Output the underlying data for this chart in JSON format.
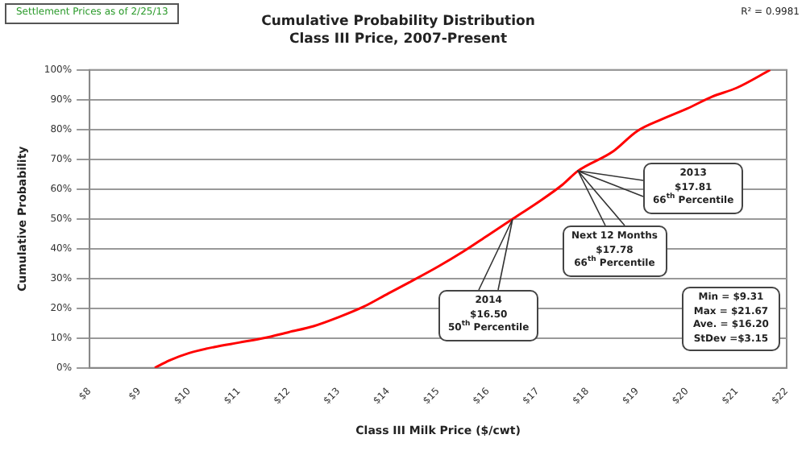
{
  "chart_data": {
    "type": "line",
    "title": "Cumulative Probability Distribution",
    "subtitle": "Class III Price, 2007-Present",
    "xlabel": "Class III Milk Price ($/cwt)",
    "ylabel": "Cumulative Probability",
    "series": [
      {
        "color": "#ff0000",
        "x": [
          9.31,
          9.6,
          10,
          10.5,
          11,
          11.5,
          12,
          12.5,
          13,
          13.5,
          14,
          14.42,
          15,
          15.5,
          16,
          16.5,
          17,
          17.5,
          17.8,
          18.5,
          19,
          19.5,
          20,
          20.5,
          21,
          21.67
        ],
        "values": [
          0,
          2.5,
          5,
          7,
          8.5,
          10,
          12,
          14,
          17,
          20.5,
          25,
          28.7,
          34,
          39,
          44.5,
          50,
          55.5,
          61.5,
          66,
          72.5,
          79.5,
          83.5,
          87,
          91,
          94,
          100
        ]
      }
    ],
    "xlim": [
      8,
      22
    ],
    "xticks": [
      {
        "value": 8,
        "label": "$8"
      },
      {
        "value": 9,
        "label": "$9"
      },
      {
        "value": 10,
        "label": "$10"
      },
      {
        "value": 11,
        "label": "$11"
      },
      {
        "value": 12,
        "label": "$12"
      },
      {
        "value": 13,
        "label": "$13"
      },
      {
        "value": 14,
        "label": "$14"
      },
      {
        "value": 15,
        "label": "$15"
      },
      {
        "value": 16,
        "label": "$16"
      },
      {
        "value": 17,
        "label": "$17"
      },
      {
        "value": 18,
        "label": "$18"
      },
      {
        "value": 19,
        "label": "$19"
      },
      {
        "value": 20,
        "label": "$20"
      },
      {
        "value": 21,
        "label": "$21"
      },
      {
        "value": 22,
        "label": "$22"
      }
    ],
    "ylim": [
      0,
      100
    ],
    "yticks": [
      {
        "value": 0,
        "label": "0%"
      },
      {
        "value": 10,
        "label": "10%"
      },
      {
        "value": 20,
        "label": "20%"
      },
      {
        "value": 30,
        "label": "30%"
      },
      {
        "value": 40,
        "label": "40%"
      },
      {
        "value": 50,
        "label": "50%"
      },
      {
        "value": 60,
        "label": "60%"
      },
      {
        "value": 70,
        "label": "70%"
      },
      {
        "value": 80,
        "label": "80%"
      },
      {
        "value": 90,
        "label": "90%"
      },
      {
        "value": 100,
        "label": "100%"
      }
    ],
    "grid": "y",
    "legend": false,
    "marker": "none",
    "line_style": "solid",
    "annotations": [
      "2014\n$16.50\n50$^{th}$ Percentile",
      "Next 12 Months\n$17.78\n66$^{th}$ Percentile",
      "2013\n$17.81\n66$^{th}$ Percentile",
      "Settlement Prices as of 2/25/13",
      "R² = 0.9981",
      "Min = $9.31\nMax = $21.67\nAve. = $16.20\nStDev =$3.15"
    ]
  }
}
